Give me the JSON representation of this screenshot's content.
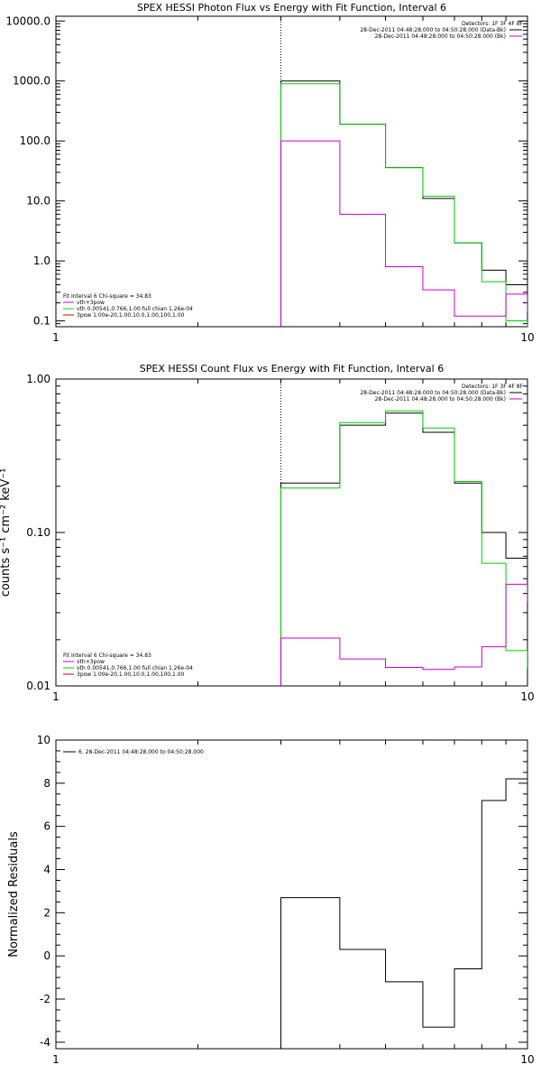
{
  "chart_data": [
    {
      "type": "line",
      "title": "SPEX HESSI Photon Flux vs Energy with Fit Function, Interval 6",
      "xlabel": "",
      "ylabel": "",
      "xscale": "log",
      "yscale": "log",
      "xlim": [
        1,
        10
      ],
      "ylim": [
        0.08,
        12000
      ],
      "xticks": [
        1,
        10
      ],
      "xtick_labels": [
        "1",
        "10"
      ],
      "yticks": [
        0.1,
        1,
        10,
        100,
        1000,
        10000
      ],
      "ytick_labels": [
        "0.1",
        "1.0",
        "10.0",
        "100.0",
        "1000.0",
        "10000.0"
      ],
      "vline_x": 3,
      "bin_edges": [
        3,
        4,
        5,
        6,
        7,
        8,
        9,
        10
      ],
      "series": [
        {
          "color": "#000000",
          "values": [
            1000,
            190,
            36,
            11,
            2,
            0.7,
            0.4
          ]
        },
        {
          "color": "#00cc00",
          "values": [
            900,
            190,
            36,
            12,
            2,
            0.45,
            0.1
          ]
        },
        {
          "color": "#cc00cc",
          "values": [
            100,
            6,
            0.8,
            0.33,
            0.12,
            0.12,
            0.28
          ]
        }
      ],
      "legend_header": "Detectors: 1F 3F 4F 8F",
      "legend": [
        {
          "text": "28-Dec-2011 04:48:28.000 to 04:50:28.000 (Data-Bk)",
          "color": "#000000"
        },
        {
          "text": "28-Dec-2011 04:48:28.000 to 04:50:28.000 (Bk)",
          "color": "#cc00cc"
        }
      ],
      "fit_info": "Fit Interval 6   Chi-square = 34.83",
      "fit_lines": [
        {
          "text": "vth+3pow",
          "color": "#cc00cc"
        },
        {
          "text": "vth 0.00541,0.766,1.00   full chian 1.26e-04",
          "color": "#00cc00"
        },
        {
          "text": "3pow 1.00e-20,1.00,10.0,1.00,100,1.00",
          "color": "#cc0000"
        }
      ]
    },
    {
      "type": "line",
      "title": "SPEX HESSI Count Flux vs Energy with Fit Function, Interval 6",
      "xlabel": "",
      "ylabel": "counts s⁻¹ cm⁻² keV⁻¹",
      "xscale": "log",
      "yscale": "log",
      "xlim": [
        1,
        10
      ],
      "ylim": [
        0.01,
        1
      ],
      "xticks": [
        1,
        10
      ],
      "xtick_labels": [
        "1",
        "10"
      ],
      "yticks": [
        0.01,
        0.1,
        1
      ],
      "ytick_labels": [
        "0.01",
        "0.10",
        "1.00"
      ],
      "vline_x": 3,
      "bin_edges": [
        3,
        4,
        5,
        6,
        7,
        8,
        9,
        10
      ],
      "series": [
        {
          "color": "#000000",
          "values": [
            0.21,
            0.5,
            0.6,
            0.45,
            0.21,
            0.1,
            0.068
          ]
        },
        {
          "color": "#00cc00",
          "values": [
            0.195,
            0.52,
            0.62,
            0.48,
            0.215,
            0.063,
            0.017
          ]
        },
        {
          "color": "#cc00cc",
          "values": [
            0.0205,
            0.015,
            0.0132,
            0.0128,
            0.0133,
            0.018,
            0.046
          ]
        }
      ],
      "legend_header": "Detectors: 1F 3F 4F 8F",
      "legend": [
        {
          "text": "28-Dec-2011 04:48:28.000 to 04:50:28.000 (Data-Bk)",
          "color": "#000000"
        },
        {
          "text": "28-Dec-2011 04:48:28.000 to 04:50:28.000 (Bk)",
          "color": "#cc00cc"
        }
      ],
      "fit_info": "Fit Interval 6   Chi-square = 34.83",
      "fit_lines": [
        {
          "text": "vth+3pow",
          "color": "#cc00cc"
        },
        {
          "text": "vth 0.00541,0.766,1.00   full chian 1.26e-04",
          "color": "#00cc00"
        },
        {
          "text": "3pow 1.00e-20,1.00,10.0,1.00,100,1.00",
          "color": "#cc0000"
        }
      ]
    },
    {
      "type": "line",
      "title": "",
      "xlabel": "",
      "ylabel": "Normalized Residuals",
      "xscale": "log",
      "yscale": "linear",
      "xlim": [
        1,
        10
      ],
      "ylim": [
        -4.3,
        10
      ],
      "xticks": [
        1,
        10
      ],
      "xtick_labels": [
        "1",
        "10"
      ],
      "yticks": [
        -4,
        -2,
        0,
        2,
        4,
        6,
        8,
        10
      ],
      "ytick_labels": [
        "-4",
        "-2",
        "0",
        "2",
        "4",
        "6",
        "8",
        "10"
      ],
      "bin_edges": [
        3,
        4,
        5,
        6,
        7,
        8,
        9,
        10
      ],
      "series": [
        {
          "color": "#000000",
          "values": [
            2.7,
            0.3,
            -1.2,
            -3.3,
            -0.6,
            7.2,
            8.2
          ]
        }
      ],
      "legend": [
        {
          "text": "6. 28-Dec-2011 04:48:28.000 to 04:50:28.000",
          "color": "#000000"
        }
      ]
    }
  ]
}
